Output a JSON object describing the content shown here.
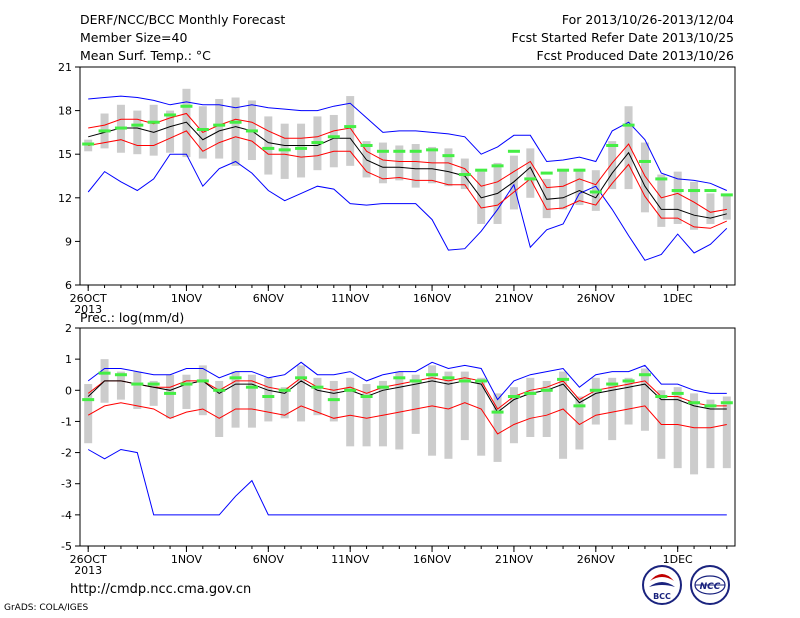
{
  "header": {
    "left": [
      "DERF/NCC/BCC Monthly Forecast",
      "Member Size=40",
      "Mean Surf. Temp.: °C"
    ],
    "right": [
      "For 2013/10/26-2013/12/04",
      "Fcst Started Refer Date 2013/10/25",
      "Fcst Produced Date 2013/10/26"
    ]
  },
  "footer": {
    "url": "http://cmdp.ncc.cma.gov.cn",
    "grads": "GrADS: COLA/IGES",
    "logo_bcc": "BCC",
    "logo_ncc": "NCC"
  },
  "colors": {
    "max": "#0000ff",
    "min_member": "#0000ff",
    "p90": "#ff0000",
    "mean": "#000000",
    "marker": "#44ee44",
    "box": "#cccccc"
  },
  "chart_data": [
    {
      "type": "line",
      "title": "Mean Surf. Temp.: °C",
      "xlabel": "",
      "ylabel": "",
      "x_ticks": [
        "26OCT",
        "1NOV",
        "6NOV",
        "11NOV",
        "16NOV",
        "21NOV",
        "26NOV",
        "1DEC"
      ],
      "x_tick_sub": "2013",
      "x_tick_days": [
        1,
        7,
        12,
        17,
        22,
        27,
        32,
        37
      ],
      "n_days": 40,
      "ylim": [
        6,
        21
      ],
      "yticks": [
        6,
        9,
        12,
        15,
        18,
        21
      ],
      "series": {
        "upper": [
          18.8,
          18.9,
          19.0,
          18.9,
          18.7,
          18.4,
          18.6,
          18.4,
          18.4,
          18.2,
          18.4,
          18.2,
          18.1,
          18.0,
          18.0,
          18.3,
          18.5,
          17.5,
          16.5,
          16.6,
          16.6,
          16.5,
          16.4,
          16.2,
          15.0,
          15.5,
          16.3,
          16.3,
          14.5,
          14.6,
          14.8,
          14.5,
          16.6,
          17.2,
          16.0,
          13.7,
          13.3,
          13.2,
          13.0,
          12.5
        ],
        "p_hi": [
          16.8,
          17.0,
          17.4,
          17.4,
          17.1,
          17.5,
          17.8,
          16.5,
          17.0,
          17.4,
          17.2,
          16.6,
          16.1,
          16.1,
          16.2,
          16.6,
          16.8,
          15.2,
          14.6,
          14.5,
          14.5,
          14.4,
          14.4,
          14.0,
          12.8,
          13.1,
          13.8,
          14.5,
          12.7,
          12.8,
          13.3,
          12.9,
          14.4,
          15.7,
          13.5,
          12.0,
          12.3,
          11.7,
          11.0,
          11.2
        ],
        "mean": [
          16.2,
          16.5,
          16.8,
          16.8,
          16.5,
          16.9,
          17.2,
          16.0,
          16.6,
          16.9,
          16.6,
          15.8,
          15.6,
          15.6,
          15.6,
          16.1,
          16.1,
          14.6,
          14.1,
          14.1,
          14.0,
          14.0,
          13.8,
          13.5,
          12.0,
          12.3,
          13.1,
          14.1,
          11.9,
          12.0,
          12.5,
          12.0,
          13.7,
          15.1,
          12.8,
          11.2,
          11.2,
          10.8,
          10.6,
          10.9
        ],
        "p_lo": [
          15.6,
          15.8,
          16.0,
          15.6,
          15.6,
          16.1,
          16.6,
          15.2,
          15.8,
          16.2,
          15.9,
          15.0,
          15.0,
          14.8,
          14.9,
          15.2,
          15.2,
          13.8,
          13.3,
          13.4,
          13.2,
          13.2,
          12.9,
          12.9,
          11.3,
          11.5,
          12.4,
          13.3,
          11.2,
          11.3,
          11.8,
          11.5,
          13.0,
          14.3,
          12.1,
          10.6,
          10.6,
          10.0,
          9.9,
          10.4
        ],
        "lower": [
          12.4,
          13.8,
          13.1,
          12.5,
          13.3,
          15.0,
          15.0,
          12.8,
          14.0,
          14.5,
          13.7,
          12.5,
          11.8,
          12.3,
          12.8,
          12.6,
          11.6,
          11.5,
          11.6,
          11.6,
          11.6,
          10.5,
          8.4,
          8.5,
          9.7,
          11.2,
          12.9,
          8.6,
          9.8,
          10.2,
          12.3,
          12.8,
          11.2,
          9.4,
          7.7,
          8.1,
          9.5,
          8.2,
          8.8,
          9.9
        ],
        "box_top": [
          16.0,
          17.8,
          18.4,
          18.0,
          18.4,
          18.0,
          19.5,
          18.3,
          18.8,
          18.9,
          18.7,
          17.6,
          17.1,
          17.1,
          17.6,
          17.7,
          19.0,
          15.9,
          15.8,
          15.6,
          15.7,
          15.5,
          15.4,
          14.7,
          13.8,
          14.4,
          14.9,
          15.4,
          13.3,
          13.9,
          14.0,
          13.9,
          15.9,
          18.3,
          15.8,
          13.6,
          13.8,
          13.1,
          12.3,
          12.2
        ],
        "box_bot": [
          15.2,
          15.4,
          15.1,
          15.0,
          14.9,
          15.1,
          14.8,
          14.7,
          14.7,
          14.2,
          14.6,
          13.6,
          13.3,
          13.4,
          13.9,
          14.1,
          14.2,
          13.4,
          13.0,
          13.2,
          12.7,
          13.0,
          12.8,
          12.6,
          10.2,
          10.2,
          11.2,
          12.0,
          10.6,
          11.2,
          11.5,
          11.1,
          12.6,
          12.6,
          11.0,
          10.0,
          10.2,
          9.8,
          10.2,
          10.5
        ],
        "marker": [
          15.7,
          16.6,
          16.8,
          17.0,
          17.2,
          17.7,
          18.3,
          16.7,
          17.0,
          17.2,
          16.6,
          15.4,
          15.3,
          15.4,
          15.8,
          16.2,
          16.9,
          15.6,
          15.2,
          15.2,
          15.2,
          15.3,
          14.9,
          13.6,
          13.9,
          14.2,
          15.2,
          13.3,
          13.7,
          13.9,
          13.9,
          12.4,
          15.6,
          17.0,
          14.5,
          13.3,
          12.5,
          12.5,
          12.5,
          12.2
        ]
      }
    },
    {
      "type": "line",
      "title": "Prec.: log(mm/d)",
      "xlabel": "",
      "ylabel": "",
      "x_ticks": [
        "26OCT",
        "1NOV",
        "6NOV",
        "11NOV",
        "16NOV",
        "21NOV",
        "26NOV",
        "1DEC"
      ],
      "x_tick_sub": "2013",
      "x_tick_days": [
        1,
        7,
        12,
        17,
        22,
        27,
        32,
        37
      ],
      "n_days": 40,
      "ylim": [
        -5,
        2
      ],
      "yticks": [
        -5,
        -4,
        -3,
        -2,
        -1,
        0,
        1,
        2
      ],
      "series": {
        "upper": [
          0.3,
          0.7,
          0.7,
          0.6,
          0.5,
          0.5,
          0.7,
          0.7,
          0.4,
          0.6,
          0.6,
          0.4,
          0.5,
          0.9,
          0.5,
          0.5,
          0.6,
          0.3,
          0.5,
          0.6,
          0.6,
          0.9,
          0.7,
          0.8,
          0.7,
          -0.3,
          0.3,
          0.5,
          0.6,
          0.7,
          0.1,
          0.5,
          0.6,
          0.6,
          0.8,
          0.2,
          0.2,
          0.0,
          -0.1,
          -0.1
        ],
        "p_hi": [
          -0.1,
          0.3,
          0.3,
          0.2,
          0.1,
          0.1,
          0.3,
          0.3,
          0.0,
          0.3,
          0.3,
          0.1,
          0.0,
          0.4,
          0.1,
          0.0,
          0.1,
          -0.1,
          0.1,
          0.2,
          0.3,
          0.4,
          0.3,
          0.4,
          0.3,
          -0.6,
          -0.2,
          0.0,
          0.1,
          0.3,
          -0.3,
          0.0,
          0.1,
          0.2,
          0.3,
          -0.2,
          -0.2,
          -0.4,
          -0.5,
          -0.5
        ],
        "mean": [
          -0.2,
          0.3,
          0.3,
          0.2,
          0.1,
          0.0,
          0.2,
          0.3,
          -0.1,
          0.2,
          0.2,
          0.0,
          -0.1,
          0.3,
          0.0,
          -0.1,
          0.0,
          -0.2,
          0.0,
          0.1,
          0.2,
          0.3,
          0.2,
          0.3,
          0.2,
          -0.7,
          -0.3,
          -0.1,
          0.0,
          0.2,
          -0.4,
          -0.1,
          0.0,
          0.1,
          0.2,
          -0.3,
          -0.3,
          -0.5,
          -0.6,
          -0.6
        ],
        "p_lo": [
          -0.8,
          -0.5,
          -0.4,
          -0.5,
          -0.6,
          -0.9,
          -0.7,
          -0.6,
          -0.9,
          -0.6,
          -0.6,
          -0.7,
          -0.8,
          -0.5,
          -0.7,
          -0.9,
          -0.8,
          -0.9,
          -0.8,
          -0.7,
          -0.6,
          -0.5,
          -0.6,
          -0.4,
          -0.6,
          -1.4,
          -1.1,
          -0.9,
          -0.8,
          -0.6,
          -1.1,
          -0.8,
          -0.7,
          -0.6,
          -0.5,
          -1.1,
          -1.1,
          -1.2,
          -1.2,
          -1.1
        ],
        "lower": [
          -1.9,
          -2.2,
          -1.9,
          -2.0,
          -4.0,
          -4.0,
          -4.0,
          -4.0,
          -4.0,
          -3.4,
          -2.9,
          -4.0,
          -4.0,
          -4.0,
          -4.0,
          -4.0,
          -4.0,
          -4.0,
          -4.0,
          -4.0,
          -4.0,
          -4.0,
          -4.0,
          -4.0,
          -4.0,
          -4.0,
          -4.0,
          -4.0,
          -4.0,
          -4.0,
          -4.0,
          -4.0,
          -4.0,
          -4.0,
          -4.0,
          -4.0,
          -4.0,
          -4.0,
          -4.0,
          -4.0
        ],
        "box_top": [
          0.2,
          1.0,
          0.6,
          0.6,
          0.3,
          0.5,
          0.5,
          0.8,
          0.3,
          0.6,
          0.5,
          0.4,
          0.1,
          0.8,
          0.4,
          0.3,
          0.4,
          0.2,
          0.3,
          0.6,
          0.5,
          0.8,
          0.6,
          0.6,
          0.4,
          -0.1,
          0.1,
          0.4,
          0.3,
          0.6,
          -0.2,
          0.4,
          0.4,
          0.4,
          0.7,
          0.0,
          0.1,
          -0.1,
          -0.3,
          -0.2
        ],
        "box_bot": [
          -1.7,
          -0.4,
          -0.3,
          -0.6,
          -0.5,
          -0.9,
          -0.6,
          -0.8,
          -1.5,
          -1.2,
          -1.2,
          -1.0,
          -0.9,
          -1.0,
          -0.8,
          -1.0,
          -1.8,
          -1.8,
          -1.8,
          -1.9,
          -1.4,
          -2.1,
          -2.2,
          -1.6,
          -2.1,
          -2.3,
          -1.7,
          -1.5,
          -1.5,
          -2.2,
          -1.9,
          -1.1,
          -1.6,
          -1.1,
          -1.3,
          -2.2,
          -2.5,
          -2.7,
          -2.5,
          -2.5
        ],
        "marker": [
          -0.3,
          0.55,
          0.5,
          0.2,
          0.2,
          -0.1,
          0.2,
          0.3,
          0.0,
          0.4,
          0.1,
          -0.2,
          0.0,
          0.4,
          0.1,
          -0.3,
          0.0,
          -0.2,
          0.1,
          0.4,
          0.3,
          0.5,
          0.4,
          0.3,
          0.3,
          -0.7,
          -0.2,
          -0.1,
          0.0,
          0.35,
          -0.5,
          0.0,
          0.2,
          0.3,
          0.5,
          -0.2,
          -0.1,
          -0.4,
          -0.5,
          -0.4
        ]
      }
    }
  ]
}
